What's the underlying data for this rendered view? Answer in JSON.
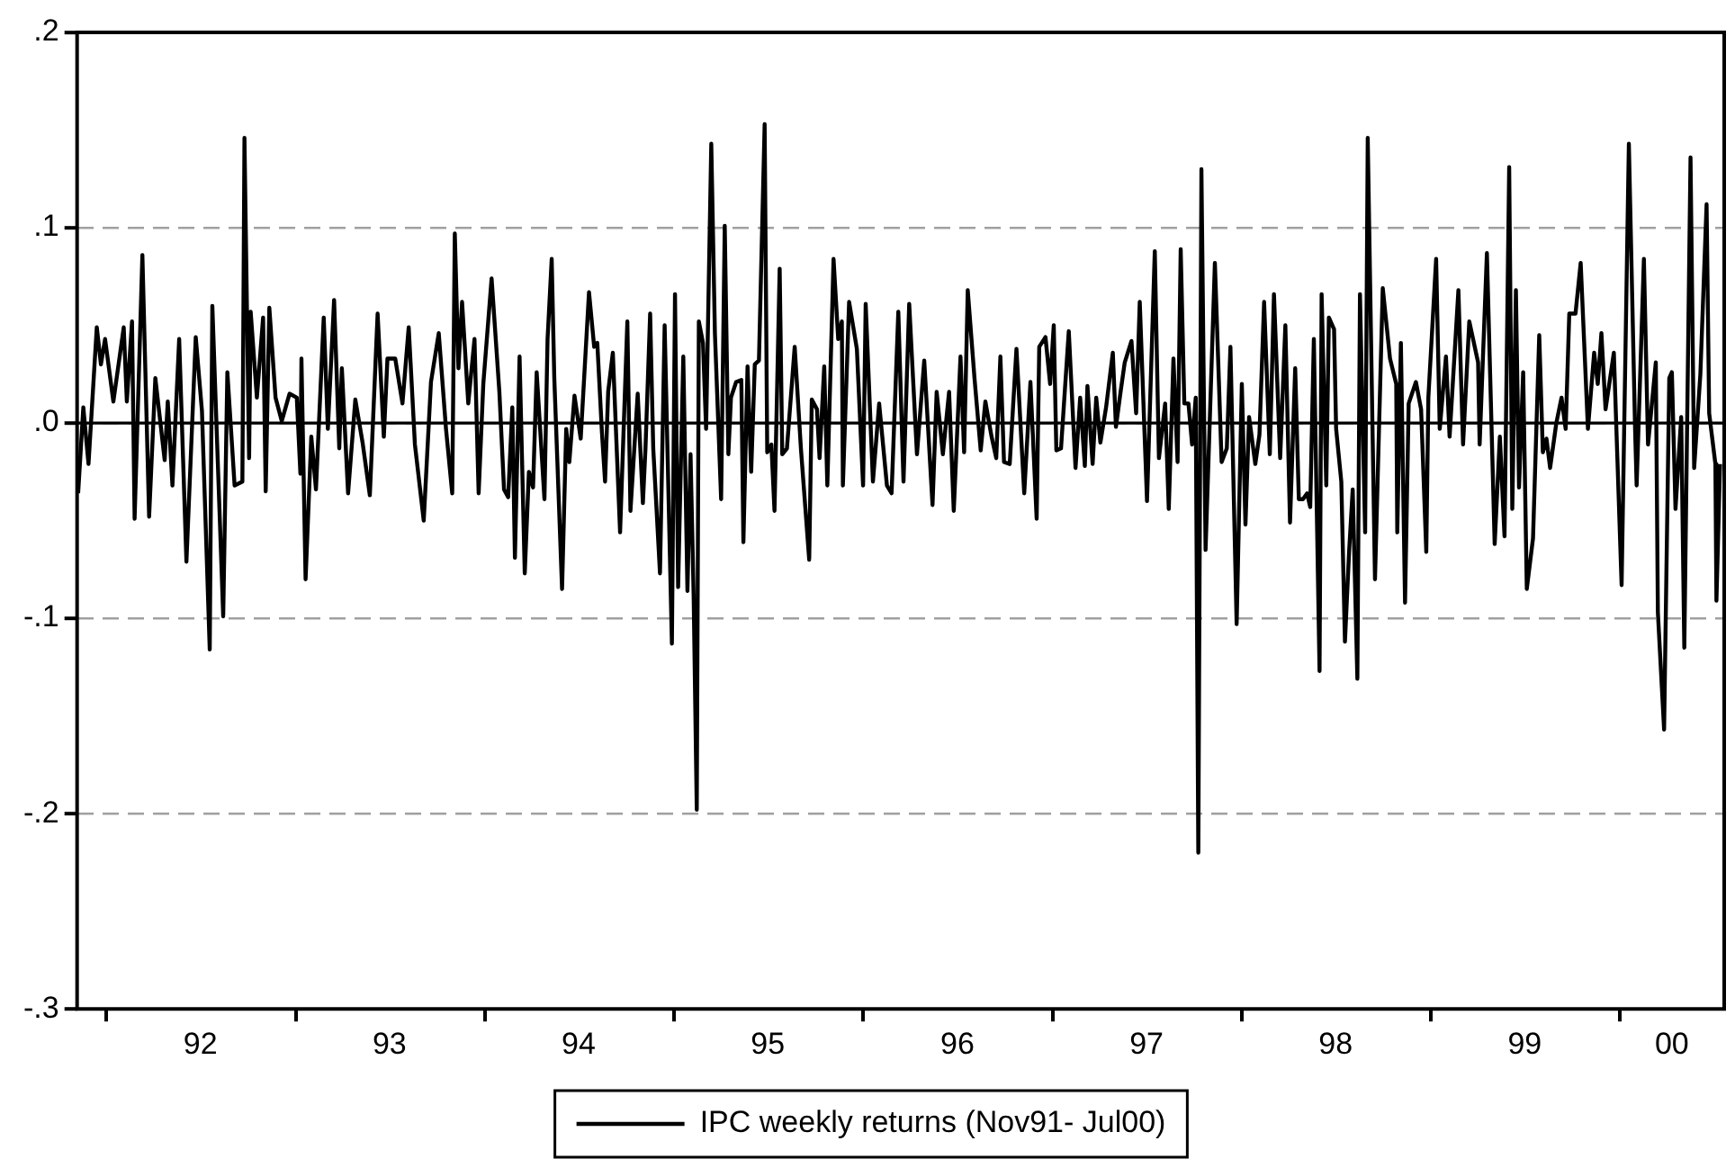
{
  "chart_data": {
    "type": "line",
    "legend": "bottom",
    "grid": "y",
    "marker": "none",
    "line_style": "solid",
    "xlim": [
      "1991-11-06",
      "2000-07-20"
    ],
    "xticks": [
      {
        "value": "1992-01-01",
        "label": null
      },
      {
        "value": "1992-07-01",
        "label": "92"
      },
      {
        "value": "1993-01-01",
        "label": null
      },
      {
        "value": "1993-07-01",
        "label": "93"
      },
      {
        "value": "1994-01-01",
        "label": null
      },
      {
        "value": "1994-07-01",
        "label": "94"
      },
      {
        "value": "1995-01-01",
        "label": null
      },
      {
        "value": "1995-07-01",
        "label": "95"
      },
      {
        "value": "1996-01-01",
        "label": null
      },
      {
        "value": "1996-07-01",
        "label": "96"
      },
      {
        "value": "1997-01-01",
        "label": null
      },
      {
        "value": "1997-07-01",
        "label": "97"
      },
      {
        "value": "1998-01-01",
        "label": null
      },
      {
        "value": "1998-07-01",
        "label": "98"
      },
      {
        "value": "1999-01-01",
        "label": null
      },
      {
        "value": "1999-07-01",
        "label": "99"
      },
      {
        "value": "2000-01-01",
        "label": null
      },
      {
        "value": "2000-04-10",
        "label": "00"
      }
    ],
    "ylim": [
      -0.3,
      0.2
    ],
    "yticks": [
      {
        "value": -0.3,
        "label": "-.3"
      },
      {
        "value": -0.2,
        "label": "-.2"
      },
      {
        "value": -0.1,
        "label": "-.1"
      },
      {
        "value": 0,
        "label": ".0"
      },
      {
        "value": 0.1,
        "label": ".1"
      },
      {
        "value": 0.2,
        "label": ".2"
      }
    ],
    "ref_lines": [
      {
        "axis": "y",
        "value": 0,
        "color": "#000000"
      }
    ],
    "series": [
      {
        "name": "IPC weekly returns (Nov91- Jul00)",
        "color": "#000000",
        "x": [
          "1991-11-08",
          "1991-11-18",
          "1991-11-28",
          "1991-12-14",
          "1991-12-22",
          "1991-12-30",
          "1992-01-15",
          "1992-02-04",
          "1992-02-10",
          "1992-02-20",
          "1992-02-25",
          "1992-03-11",
          "1992-03-24",
          "1992-04-05",
          "1992-04-23",
          "1992-04-29",
          "1992-05-08",
          "1992-05-21",
          "1992-06-04",
          "1992-06-22",
          "1992-07-04",
          "1992-07-19",
          "1992-07-24",
          "1992-08-14",
          "1992-08-22",
          "1992-09-05",
          "1992-09-20",
          "1992-09-24",
          "1992-10-03",
          "1992-10-06",
          "1992-10-18",
          "1992-10-30",
          "1992-11-04",
          "1992-11-11",
          "1992-11-23",
          "1992-12-05",
          "1992-12-20",
          "1993-01-03",
          "1993-01-10",
          "1993-01-12",
          "1993-01-20",
          "1993-01-31",
          "1993-02-09",
          "1993-02-24",
          "1993-03-04",
          "1993-03-16",
          "1993-03-26",
          "1993-03-31",
          "1993-04-12",
          "1993-04-26",
          "1993-05-10",
          "1993-05-24",
          "1993-06-08",
          "1993-06-20",
          "1993-06-27",
          "1993-07-12",
          "1993-07-26",
          "1993-08-07",
          "1993-08-19",
          "1993-09-05",
          "1993-09-19",
          "1993-10-04",
          "1993-10-18",
          "1993-10-30",
          "1993-11-04",
          "1993-11-11",
          "1993-11-18",
          "1993-11-30",
          "1993-12-12",
          "1993-12-20",
          "1993-12-29",
          "1994-01-14",
          "1994-01-29",
          "1994-02-07",
          "1994-02-15",
          "1994-02-23",
          "1994-02-28",
          "1994-03-09",
          "1994-03-19",
          "1994-03-27",
          "1994-04-04",
          "1994-04-11",
          "1994-04-26",
          "1994-05-02",
          "1994-05-10",
          "1994-05-15",
          "1994-05-30",
          "1994-06-07",
          "1994-06-13",
          "1994-06-23",
          "1994-07-05",
          "1994-07-21",
          "1994-07-31",
          "1994-08-06",
          "1994-08-15",
          "1994-08-21",
          "1994-08-27",
          "1994-09-05",
          "1994-09-19",
          "1994-10-03",
          "1994-10-09",
          "1994-10-23",
          "1994-11-02",
          "1994-11-07",
          "1994-11-16",
          "1994-11-22",
          "1994-12-05",
          "1994-12-14",
          "1994-12-28",
          "1995-01-03",
          "1995-01-09",
          "1995-01-19",
          "1995-01-27",
          "1995-02-02",
          "1995-02-08",
          "1995-02-14",
          "1995-02-18",
          "1995-02-26",
          "1995-03-04",
          "1995-03-14",
          "1995-03-21",
          "1995-04-02",
          "1995-04-09",
          "1995-04-16",
          "1995-04-21",
          "1995-05-01",
          "1995-05-11",
          "1995-05-15",
          "1995-05-23",
          "1995-05-30",
          "1995-06-06",
          "1995-06-14",
          "1995-06-25",
          "1995-06-30",
          "1995-07-08",
          "1995-07-14",
          "1995-07-24",
          "1995-07-29",
          "1995-08-07",
          "1995-08-22",
          "1995-09-03",
          "1995-09-19",
          "1995-09-24",
          "1995-10-04",
          "1995-10-09",
          "1995-10-18",
          "1995-10-24",
          "1995-11-05",
          "1995-11-14",
          "1995-11-21",
          "1995-11-23",
          "1995-12-05",
          "1995-12-20",
          "1996-01-01",
          "1996-01-06",
          "1996-01-20",
          "1996-02-01",
          "1996-02-16",
          "1996-02-25",
          "1996-03-09",
          "1996-03-19",
          "1996-03-30",
          "1996-04-14",
          "1996-04-28",
          "1996-05-14",
          "1996-05-22",
          "1996-06-03",
          "1996-06-15",
          "1996-06-24",
          "1996-07-07",
          "1996-07-14",
          "1996-07-21",
          "1996-08-03",
          "1996-08-15",
          "1996-08-24",
          "1996-09-05",
          "1996-09-14",
          "1996-09-22",
          "1996-09-29",
          "1996-10-10",
          "1996-10-23",
          "1996-11-07",
          "1996-11-19",
          "1996-12-01",
          "1996-12-06",
          "1996-12-18",
          "1996-12-27",
          "1997-01-03",
          "1997-01-08",
          "1997-01-17",
          "1997-02-01",
          "1997-02-14",
          "1997-02-23",
          "1997-03-04",
          "1997-03-09",
          "1997-03-19",
          "1997-03-26",
          "1997-04-03",
          "1997-04-14",
          "1997-04-27",
          "1997-05-03",
          "1997-05-12",
          "1997-05-20",
          "1997-06-02",
          "1997-06-11",
          "1997-06-18",
          "1997-07-02",
          "1997-07-17",
          "1997-07-25",
          "1997-08-06",
          "1997-08-13",
          "1997-08-22",
          "1997-08-30",
          "1997-09-05",
          "1997-09-12",
          "1997-09-20",
          "1997-09-27",
          "1997-10-04",
          "1997-10-09",
          "1997-10-15",
          "1997-10-23",
          "1997-11-10",
          "1997-11-23",
          "1997-12-03",
          "1997-12-10",
          "1997-12-22",
          "1998-01-01",
          "1998-01-08",
          "1998-01-15",
          "1998-01-27",
          "1998-02-04",
          "1998-02-13",
          "1998-02-24",
          "1998-03-04",
          "1998-03-16",
          "1998-03-26",
          "1998-04-04",
          "1998-04-14",
          "1998-04-21",
          "1998-04-29",
          "1998-05-07",
          "1998-05-13",
          "1998-05-20",
          "1998-05-31",
          "1998-06-04",
          "1998-06-13",
          "1998-06-18",
          "1998-06-28",
          "1998-07-02",
          "1998-07-12",
          "1998-07-19",
          "1998-07-27",
          "1998-08-03",
          "1998-08-12",
          "1998-08-17",
          "1998-08-27",
          "1998-09-01",
          "1998-09-15",
          "1998-09-30",
          "1998-10-14",
          "1998-10-26",
          "1998-10-28",
          "1998-11-04",
          "1998-11-12",
          "1998-11-19",
          "1998-12-03",
          "1998-12-13",
          "1998-12-23",
          "1998-12-27",
          "1999-01-11",
          "1999-01-18",
          "1999-01-30",
          "1999-02-06",
          "1999-02-23",
          "1999-03-04",
          "1999-03-16",
          "1999-04-02",
          "1999-04-05",
          "1999-04-19",
          "1999-05-04",
          "1999-05-14",
          "1999-05-23",
          "1999-06-01",
          "1999-06-07",
          "1999-06-14",
          "1999-06-20",
          "1999-06-28",
          "1999-07-05",
          "1999-07-17",
          "1999-07-29",
          "1999-08-05",
          "1999-08-12",
          "1999-08-19",
          "1999-08-31",
          "1999-09-10",
          "1999-09-18",
          "1999-09-25",
          "1999-10-07",
          "1999-10-17",
          "1999-10-31",
          "1999-11-12",
          "1999-11-19",
          "1999-11-26",
          "1999-12-04",
          "1999-12-20",
          "2000-01-04",
          "2000-01-18",
          "2000-01-30",
          "2000-02-02",
          "2000-02-16",
          "2000-02-24",
          "2000-03-10",
          "2000-03-14",
          "2000-03-26",
          "2000-04-05",
          "2000-04-10",
          "2000-04-17",
          "2000-04-28",
          "2000-05-04",
          "2000-05-16",
          "2000-05-23",
          "2000-06-04",
          "2000-06-16",
          "2000-06-21",
          "2000-07-03",
          "2000-07-05",
          "2000-07-12"
        ],
        "values": [
          -0.036,
          0.008,
          -0.021,
          0.049,
          0.03,
          0.043,
          0.011,
          0.049,
          0.011,
          0.052,
          -0.049,
          0.086,
          -0.048,
          0.023,
          -0.019,
          0.011,
          -0.032,
          0.043,
          -0.071,
          0.044,
          0.006,
          -0.116,
          0.06,
          -0.099,
          0.026,
          -0.032,
          -0.03,
          0.146,
          -0.018,
          0.057,
          0.013,
          0.054,
          -0.035,
          0.059,
          0.013,
          0.001,
          0.015,
          0.013,
          -0.026,
          0.033,
          -0.08,
          -0.007,
          -0.034,
          0.054,
          -0.003,
          0.063,
          -0.013,
          0.028,
          -0.036,
          0.012,
          -0.01,
          -0.037,
          0.056,
          -0.007,
          0.033,
          0.033,
          0.01,
          0.049,
          -0.011,
          -0.05,
          0.021,
          0.046,
          -0.003,
          -0.036,
          0.097,
          0.028,
          0.062,
          0.01,
          0.043,
          -0.036,
          0.02,
          0.074,
          0.016,
          -0.034,
          -0.038,
          0.008,
          -0.069,
          0.034,
          -0.077,
          -0.025,
          -0.033,
          0.026,
          -0.039,
          0.043,
          0.084,
          0.023,
          -0.085,
          -0.003,
          -0.02,
          0.014,
          -0.008,
          0.067,
          0.039,
          0.041,
          -0.005,
          -0.03,
          0.016,
          0.036,
          -0.056,
          0.052,
          -0.045,
          0.015,
          -0.041,
          -0.013,
          0.056,
          -0.013,
          -0.077,
          0.05,
          -0.113,
          0.066,
          -0.084,
          0.034,
          -0.086,
          -0.016,
          -0.089,
          -0.198,
          0.052,
          0.041,
          -0.003,
          0.143,
          0.046,
          -0.039,
          0.101,
          -0.016,
          0.013,
          0.021,
          0.022,
          -0.061,
          0.029,
          -0.025,
          0.03,
          0.032,
          0.153,
          -0.015,
          -0.011,
          -0.045,
          0.079,
          -0.016,
          -0.013,
          0.039,
          -0.013,
          -0.07,
          0.012,
          0.007,
          -0.018,
          0.029,
          -0.032,
          0.084,
          0.043,
          0.052,
          -0.032,
          0.062,
          0.038,
          -0.032,
          0.061,
          -0.03,
          0.01,
          -0.032,
          -0.036,
          0.057,
          -0.03,
          0.061,
          -0.016,
          0.032,
          -0.042,
          0.016,
          -0.016,
          0.016,
          -0.045,
          0.034,
          -0.015,
          0.068,
          0.023,
          -0.014,
          0.011,
          -0.007,
          -0.018,
          0.034,
          -0.02,
          -0.021,
          0.038,
          -0.036,
          0.021,
          -0.049,
          0.039,
          0.044,
          0.02,
          0.05,
          -0.014,
          -0.013,
          0.047,
          -0.023,
          0.013,
          -0.022,
          0.019,
          -0.021,
          0.013,
          -0.01,
          0.008,
          0.036,
          -0.002,
          0.016,
          0.031,
          0.042,
          0.005,
          0.062,
          -0.04,
          0.088,
          -0.018,
          0.01,
          -0.044,
          0.033,
          -0.02,
          0.089,
          0.01,
          0.01,
          -0.011,
          0.013,
          -0.22,
          0.13,
          -0.065,
          0.082,
          -0.02,
          -0.013,
          0.039,
          -0.103,
          0.02,
          -0.052,
          0.003,
          -0.021,
          -0.006,
          0.062,
          -0.016,
          0.066,
          -0.018,
          0.05,
          -0.051,
          0.028,
          -0.039,
          -0.039,
          -0.036,
          -0.043,
          0.043,
          -0.127,
          0.066,
          -0.032,
          0.054,
          0.048,
          -0.003,
          -0.03,
          -0.112,
          -0.066,
          -0.034,
          -0.131,
          0.066,
          -0.056,
          0.146,
          -0.08,
          0.069,
          0.033,
          0.02,
          -0.056,
          0.041,
          -0.092,
          0.01,
          0.021,
          0.007,
          -0.066,
          0.013,
          0.084,
          -0.003,
          0.034,
          -0.007,
          0.068,
          -0.011,
          0.052,
          0.031,
          -0.011,
          0.087,
          -0.062,
          -0.007,
          -0.058,
          0.131,
          -0.044,
          0.068,
          -0.033,
          0.026,
          -0.085,
          -0.059,
          0.045,
          -0.015,
          -0.008,
          -0.023,
          0.0,
          0.013,
          -0.003,
          0.056,
          0.056,
          0.082,
          -0.003,
          0.036,
          0.02,
          0.046,
          0.007,
          0.036,
          -0.083,
          0.143,
          -0.003,
          -0.032,
          0.084,
          -0.011,
          0.031,
          -0.097,
          -0.157,
          0.023,
          0.026,
          -0.044,
          0.003,
          -0.115,
          0.136,
          -0.023,
          0.025,
          0.112,
          0.005,
          -0.021,
          -0.091,
          -0.021
        ]
      }
    ]
  }
}
